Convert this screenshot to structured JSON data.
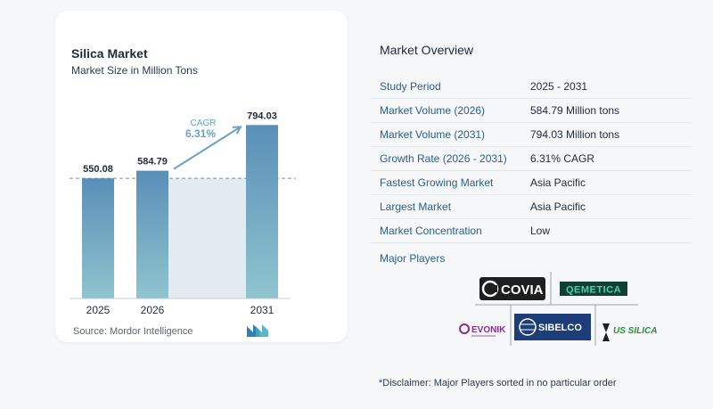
{
  "chart_data": {
    "type": "bar",
    "title": "Silica Market",
    "subtitle": "Market Size in Million Tons",
    "categories": [
      "2025",
      "2026",
      "2031"
    ],
    "values": [
      550.08,
      584.79,
      794.03
    ],
    "value_labels": [
      "550.08",
      "584.79",
      "794.03"
    ],
    "annotation": {
      "label": "CAGR",
      "value": "6.31%"
    },
    "colors": {
      "bar_top": "#5a8fb8",
      "bar_bottom": "#8fc4cf",
      "arrow": "#6aa0c8",
      "band": "#e2ebf2"
    }
  },
  "source": "Source:  Mordor Intelligence",
  "overview": {
    "title": "Market Overview",
    "rows": [
      {
        "label": "Study Period",
        "value": "2025 - 2031"
      },
      {
        "label": "Market Volume (2026)",
        "value": "584.79 Million tons"
      },
      {
        "label": "Market Volume (2031)",
        "value": "794.03 Million tons"
      },
      {
        "label": "Growth Rate (2026 - 2031)",
        "value": "6.31% CAGR"
      },
      {
        "label": "Fastest Growing Market",
        "value": "Asia Pacific"
      },
      {
        "label": "Largest Market",
        "value": "Asia Pacific"
      },
      {
        "label": "Market Concentration",
        "value": "Low"
      }
    ],
    "players_title": "Major Players",
    "players": [
      "COVIA",
      "QEMETICA",
      "EVONIK",
      "SIBELCO",
      "US SILICA"
    ]
  },
  "disclaimer": "*Disclaimer: Major Players sorted in no particular order"
}
